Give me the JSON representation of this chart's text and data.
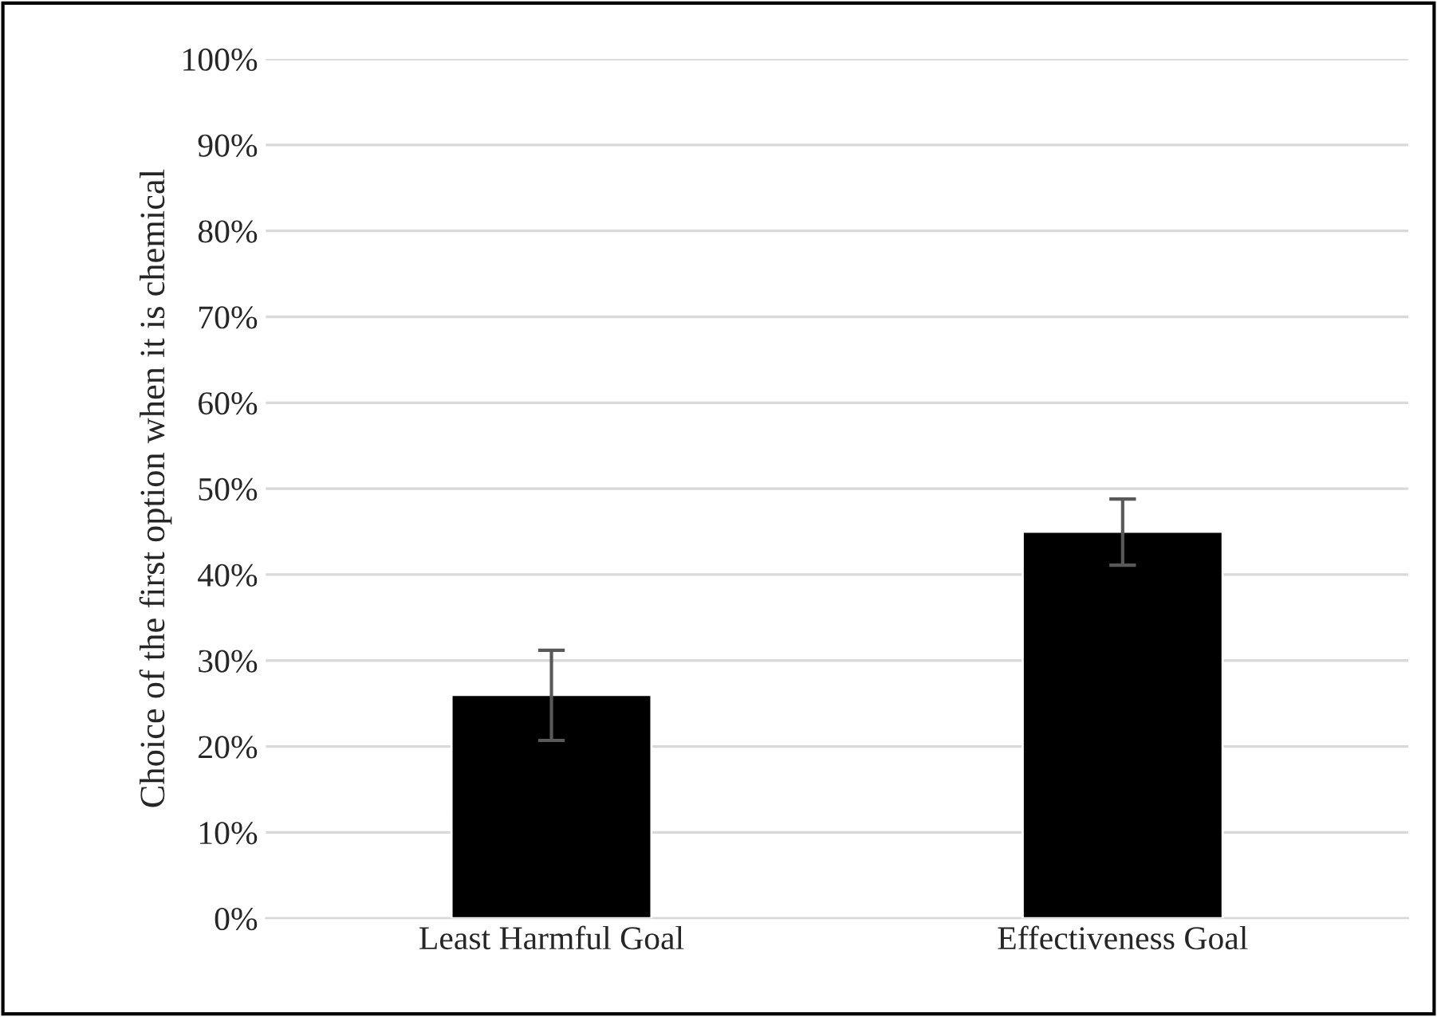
{
  "chart_data": {
    "type": "bar",
    "ylabel": "Choice of the first option when it is chemical",
    "categories": [
      "Least Harmful Goal",
      "Effectiveness Goal"
    ],
    "values": [
      26,
      45
    ],
    "errors": [
      [
        20.7,
        31.2
      ],
      [
        41.1,
        48.8
      ]
    ],
    "color": "#000000",
    "ylim": [
      0,
      100
    ],
    "yticks": [
      {
        "value": 0,
        "label": "0%"
      },
      {
        "value": 10,
        "label": "10%"
      },
      {
        "value": 20,
        "label": "20%"
      },
      {
        "value": 30,
        "label": "30%"
      },
      {
        "value": 40,
        "label": "40%"
      },
      {
        "value": 50,
        "label": "50%"
      },
      {
        "value": 60,
        "label": "60%"
      },
      {
        "value": 70,
        "label": "70%"
      },
      {
        "value": 80,
        "label": "80%"
      },
      {
        "value": 90,
        "label": "90%"
      },
      {
        "value": 100,
        "label": "100%"
      }
    ],
    "grid": "y",
    "legend": false
  }
}
